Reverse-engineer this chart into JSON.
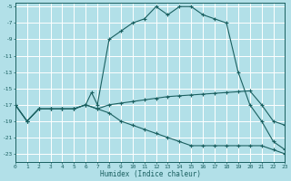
{
  "xlabel": "Humidex (Indice chaleur)",
  "bg_color": "#b2e0e8",
  "grid_color": "#ffffff",
  "line_color": "#1a6060",
  "x_ticks": [
    0,
    1,
    2,
    3,
    4,
    5,
    6,
    7,
    8,
    9,
    10,
    11,
    12,
    13,
    14,
    15,
    16,
    17,
    18,
    19,
    20,
    21,
    22,
    23
  ],
  "y_ticks": [
    -23,
    -21,
    -19,
    -17,
    -15,
    -13,
    -11,
    -9,
    -7,
    -5
  ],
  "xlim": [
    0,
    23
  ],
  "ylim": [
    -24.0,
    -4.5
  ],
  "series1_x": [
    0,
    1,
    2,
    3,
    4,
    5,
    6,
    6.5,
    7,
    8,
    9,
    10,
    11,
    12,
    13,
    14,
    15,
    16,
    17,
    18,
    19,
    20,
    21,
    22,
    23
  ],
  "series1_y": [
    -17,
    -19,
    -17.5,
    -17.5,
    -17.5,
    -17.5,
    -17,
    -15.5,
    -17,
    -9,
    -8,
    -7,
    -6.5,
    -5,
    -6,
    -5,
    -5,
    -6,
    -6.5,
    -7,
    -13,
    -17,
    -19,
    -21.5,
    -22.5
  ],
  "series2_x": [
    0,
    1,
    2,
    3,
    4,
    5,
    6,
    7,
    8,
    9,
    10,
    11,
    12,
    13,
    14,
    15,
    16,
    17,
    18,
    19,
    20,
    21,
    22,
    23
  ],
  "series2_y": [
    -17,
    -19,
    -17.5,
    -17.5,
    -17.5,
    -17.5,
    -17,
    -17.5,
    -17,
    -16.8,
    -16.6,
    -16.4,
    -16.2,
    -16,
    -15.9,
    -15.8,
    -15.7,
    -15.6,
    -15.5,
    -15.4,
    -15.3,
    -17,
    -19,
    -19.5
  ],
  "series3_x": [
    0,
    1,
    2,
    3,
    4,
    5,
    6,
    7,
    8,
    9,
    10,
    11,
    12,
    13,
    14,
    15,
    16,
    17,
    18,
    19,
    20,
    21,
    22,
    23
  ],
  "series3_y": [
    -17,
    -19,
    -17.5,
    -17.5,
    -17.5,
    -17.5,
    -17,
    -17.5,
    -18,
    -19,
    -19.5,
    -20,
    -20.5,
    -21,
    -21.5,
    -22,
    -22,
    -22,
    -22,
    -22,
    -22,
    -22,
    -22.5,
    -23
  ]
}
